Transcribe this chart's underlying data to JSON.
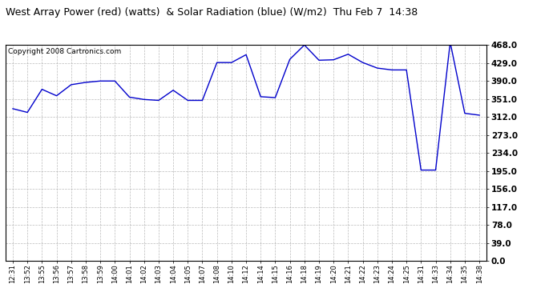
{
  "title": "West Array Power (red) (watts)  & Solar Radiation (blue) (W/m2)  Thu Feb 7  14:38",
  "copyright": "Copyright 2008 Cartronics.com",
  "line_color": "#0000cc",
  "background_color": "#ffffff",
  "plot_background": "#ffffff",
  "grid_color": "#aaaaaa",
  "ylim": [
    0.0,
    468.0
  ],
  "yticks": [
    0.0,
    39.0,
    78.0,
    117.0,
    156.0,
    195.0,
    234.0,
    273.0,
    312.0,
    351.0,
    390.0,
    429.0,
    468.0
  ],
  "x_labels": [
    "12:31",
    "13:52",
    "13:55",
    "13:56",
    "13:57",
    "13:58",
    "13:59",
    "14:00",
    "14:01",
    "14:02",
    "14:03",
    "14:04",
    "14:05",
    "14:07",
    "14:08",
    "14:10",
    "14:12",
    "14:14",
    "14:15",
    "14:16",
    "14:18",
    "14:19",
    "14:20",
    "14:21",
    "14:22",
    "14:23",
    "14:24",
    "14:25",
    "14:31",
    "14:33",
    "14:34",
    "14:35",
    "14:38"
  ],
  "y_values": [
    330,
    322,
    372,
    358,
    382,
    387,
    390,
    390,
    355,
    350,
    348,
    370,
    348,
    348,
    430,
    430,
    447,
    356,
    354,
    437,
    468,
    435,
    436,
    448,
    430,
    418,
    414,
    414,
    197,
    197,
    474,
    320,
    316
  ]
}
